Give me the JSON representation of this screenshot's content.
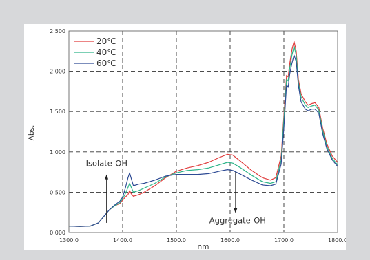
{
  "chart_data": {
    "type": "line",
    "xlabel": "nm",
    "ylabel": "Abs.",
    "xlim": [
      1300,
      1800
    ],
    "ylim": [
      0,
      2.5
    ],
    "x_ticks": [
      "1300.0",
      "1400.0",
      "1500.0",
      "1600.0",
      "1700.0",
      "1800.0"
    ],
    "y_ticks": [
      "0.000",
      "0.500",
      "1.000",
      "1.500",
      "2.000",
      "2.500"
    ],
    "grid": "dashed",
    "legend_position": "top-left",
    "annotations": [
      {
        "text": "Isolate-OH",
        "x": 1370,
        "arrow": "up"
      },
      {
        "text": "Aggregate-OH",
        "x": 1610,
        "arrow": "down"
      }
    ],
    "series": [
      {
        "name": "20℃",
        "color": "#e03c3c",
        "points": [
          [
            1300,
            0.08
          ],
          [
            1320,
            0.075
          ],
          [
            1340,
            0.08
          ],
          [
            1355,
            0.12
          ],
          [
            1365,
            0.2
          ],
          [
            1375,
            0.28
          ],
          [
            1385,
            0.33
          ],
          [
            1395,
            0.36
          ],
          [
            1400,
            0.4
          ],
          [
            1405,
            0.44
          ],
          [
            1410,
            0.47
          ],
          [
            1413,
            0.52
          ],
          [
            1416,
            0.48
          ],
          [
            1420,
            0.45
          ],
          [
            1430,
            0.47
          ],
          [
            1440,
            0.5
          ],
          [
            1460,
            0.58
          ],
          [
            1480,
            0.68
          ],
          [
            1500,
            0.76
          ],
          [
            1520,
            0.8
          ],
          [
            1540,
            0.83
          ],
          [
            1560,
            0.87
          ],
          [
            1580,
            0.93
          ],
          [
            1595,
            0.97
          ],
          [
            1605,
            0.96
          ],
          [
            1620,
            0.88
          ],
          [
            1640,
            0.77
          ],
          [
            1660,
            0.68
          ],
          [
            1675,
            0.65
          ],
          [
            1685,
            0.68
          ],
          [
            1695,
            0.95
          ],
          [
            1700,
            1.45
          ],
          [
            1705,
            1.95
          ],
          [
            1708,
            1.93
          ],
          [
            1711,
            2.1
          ],
          [
            1715,
            2.27
          ],
          [
            1719,
            2.37
          ],
          [
            1723,
            2.25
          ],
          [
            1727,
            1.9
          ],
          [
            1732,
            1.72
          ],
          [
            1740,
            1.62
          ],
          [
            1745,
            1.58
          ],
          [
            1752,
            1.6
          ],
          [
            1758,
            1.61
          ],
          [
            1765,
            1.55
          ],
          [
            1772,
            1.3
          ],
          [
            1780,
            1.1
          ],
          [
            1790,
            0.95
          ],
          [
            1800,
            0.87
          ]
        ]
      },
      {
        "name": "40℃",
        "color": "#2db589",
        "points": [
          [
            1300,
            0.08
          ],
          [
            1320,
            0.075
          ],
          [
            1340,
            0.08
          ],
          [
            1355,
            0.12
          ],
          [
            1365,
            0.2
          ],
          [
            1375,
            0.28
          ],
          [
            1385,
            0.33
          ],
          [
            1395,
            0.37
          ],
          [
            1400,
            0.42
          ],
          [
            1405,
            0.48
          ],
          [
            1410,
            0.56
          ],
          [
            1413,
            0.61
          ],
          [
            1416,
            0.56
          ],
          [
            1420,
            0.5
          ],
          [
            1430,
            0.52
          ],
          [
            1440,
            0.55
          ],
          [
            1460,
            0.61
          ],
          [
            1480,
            0.69
          ],
          [
            1500,
            0.74
          ],
          [
            1520,
            0.77
          ],
          [
            1540,
            0.78
          ],
          [
            1560,
            0.8
          ],
          [
            1580,
            0.84
          ],
          [
            1595,
            0.87
          ],
          [
            1605,
            0.86
          ],
          [
            1620,
            0.8
          ],
          [
            1640,
            0.71
          ],
          [
            1660,
            0.63
          ],
          [
            1675,
            0.61
          ],
          [
            1685,
            0.63
          ],
          [
            1695,
            0.9
          ],
          [
            1700,
            1.4
          ],
          [
            1705,
            1.9
          ],
          [
            1708,
            1.88
          ],
          [
            1711,
            2.04
          ],
          [
            1715,
            2.2
          ],
          [
            1719,
            2.31
          ],
          [
            1723,
            2.2
          ],
          [
            1727,
            1.86
          ],
          [
            1732,
            1.68
          ],
          [
            1740,
            1.58
          ],
          [
            1745,
            1.55
          ],
          [
            1752,
            1.57
          ],
          [
            1758,
            1.58
          ],
          [
            1765,
            1.52
          ],
          [
            1772,
            1.27
          ],
          [
            1780,
            1.07
          ],
          [
            1790,
            0.92
          ],
          [
            1800,
            0.84
          ]
        ]
      },
      {
        "name": "60℃",
        "color": "#2e4b94",
        "points": [
          [
            1300,
            0.08
          ],
          [
            1320,
            0.075
          ],
          [
            1340,
            0.08
          ],
          [
            1355,
            0.12
          ],
          [
            1365,
            0.2
          ],
          [
            1375,
            0.28
          ],
          [
            1385,
            0.34
          ],
          [
            1395,
            0.39
          ],
          [
            1400,
            0.44
          ],
          [
            1405,
            0.55
          ],
          [
            1410,
            0.68
          ],
          [
            1413,
            0.74
          ],
          [
            1416,
            0.67
          ],
          [
            1420,
            0.58
          ],
          [
            1430,
            0.6
          ],
          [
            1440,
            0.61
          ],
          [
            1460,
            0.65
          ],
          [
            1480,
            0.7
          ],
          [
            1500,
            0.72
          ],
          [
            1520,
            0.72
          ],
          [
            1540,
            0.72
          ],
          [
            1560,
            0.73
          ],
          [
            1580,
            0.76
          ],
          [
            1595,
            0.78
          ],
          [
            1605,
            0.77
          ],
          [
            1620,
            0.72
          ],
          [
            1640,
            0.65
          ],
          [
            1660,
            0.59
          ],
          [
            1675,
            0.58
          ],
          [
            1685,
            0.6
          ],
          [
            1695,
            0.85
          ],
          [
            1700,
            1.3
          ],
          [
            1705,
            1.83
          ],
          [
            1708,
            1.8
          ],
          [
            1711,
            1.97
          ],
          [
            1715,
            2.1
          ],
          [
            1719,
            2.2
          ],
          [
            1723,
            2.12
          ],
          [
            1727,
            1.82
          ],
          [
            1732,
            1.62
          ],
          [
            1740,
            1.53
          ],
          [
            1745,
            1.51
          ],
          [
            1752,
            1.53
          ],
          [
            1758,
            1.53
          ],
          [
            1765,
            1.48
          ],
          [
            1772,
            1.23
          ],
          [
            1780,
            1.04
          ],
          [
            1790,
            0.9
          ],
          [
            1800,
            0.82
          ]
        ]
      }
    ]
  }
}
